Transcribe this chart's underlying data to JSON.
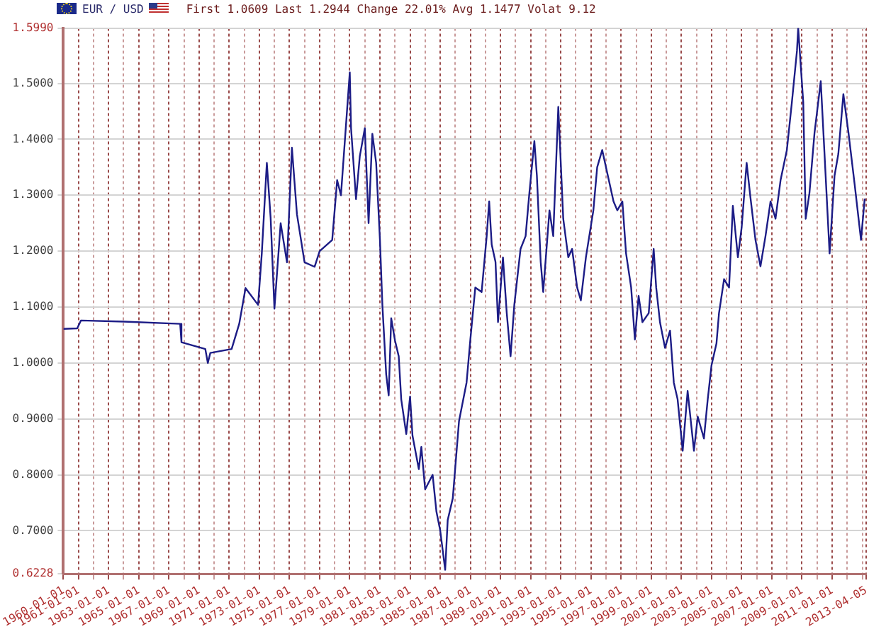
{
  "chart_data": {
    "type": "line",
    "title": "EUR / USD",
    "subtitle": "First 1.0609 Last 1.2944 Change 22.01% Avg 1.1477 Volat 9.12",
    "x": [
      "1960-01",
      "1960-12",
      "1961-03",
      "1964-01",
      "1967-10",
      "1967-11",
      "1969-06",
      "1969-08",
      "1969-10",
      "1971-03",
      "1971-09",
      "1972-02",
      "1972-12",
      "1973-03",
      "1973-07",
      "1973-10",
      "1974-01",
      "1974-06",
      "1974-11",
      "1975-03",
      "1975-07",
      "1976-01",
      "1976-09",
      "1977-01",
      "1977-11",
      "1978-03",
      "1978-06",
      "1979-01",
      "1979-02",
      "1979-06",
      "1979-09",
      "1980-01",
      "1980-04",
      "1980-07",
      "1980-10",
      "1981-01",
      "1981-03",
      "1981-06",
      "1981-08",
      "1981-10",
      "1982-01",
      "1982-04",
      "1982-06",
      "1982-10",
      "1983-01",
      "1983-03",
      "1983-08",
      "1983-10",
      "1984-01",
      "1984-07",
      "1984-10",
      "1985-01",
      "1985-05",
      "1985-07",
      "1985-11",
      "1986-04",
      "1986-10",
      "1987-01",
      "1987-05",
      "1987-10",
      "1988-02",
      "1988-04",
      "1988-06",
      "1988-09",
      "1988-11",
      "1989-03",
      "1989-06",
      "1989-09",
      "1989-12",
      "1990-05",
      "1990-09",
      "1990-12",
      "1991-04",
      "1991-06",
      "1991-09",
      "1991-11",
      "1992-04",
      "1992-07",
      "1992-11",
      "1993-03",
      "1993-07",
      "1993-10",
      "1994-02",
      "1994-05",
      "1994-09",
      "1995-03",
      "1995-06",
      "1995-10",
      "1996-01",
      "1996-07",
      "1996-10",
      "1997-02",
      "1997-05",
      "1997-09",
      "1997-12",
      "1998-03",
      "1998-06",
      "1998-11",
      "1999-03",
      "1999-05",
      "1999-08",
      "1999-12",
      "2000-04",
      "2000-07",
      "2000-10",
      "2001-02",
      "2001-06",
      "2001-11",
      "2002-02",
      "2002-07",
      "2002-10",
      "2003-01",
      "2003-05",
      "2003-07",
      "2003-11",
      "2004-03",
      "2004-06",
      "2004-10",
      "2005-01",
      "2005-05",
      "2005-08",
      "2005-12",
      "2006-04",
      "2006-08",
      "2006-12",
      "2007-04",
      "2007-08",
      "2008-01",
      "2008-05",
      "2008-09",
      "2008-10",
      "2009-02",
      "2009-04",
      "2009-07",
      "2009-11",
      "2010-04",
      "2010-07",
      "2010-11",
      "2011-03",
      "2011-06",
      "2011-10",
      "2012-02",
      "2012-07",
      "2012-12",
      "2013-03"
    ],
    "series": [
      {
        "color": "#1c1c86",
        "values": [
          1.061,
          1.062,
          1.076,
          1.074,
          1.07,
          1.037,
          1.025,
          1.0,
          1.018,
          1.025,
          1.07,
          1.134,
          1.104,
          1.196,
          1.358,
          1.26,
          1.097,
          1.25,
          1.18,
          1.385,
          1.266,
          1.18,
          1.172,
          1.2,
          1.22,
          1.327,
          1.3,
          1.52,
          1.42,
          1.293,
          1.37,
          1.42,
          1.25,
          1.41,
          1.358,
          1.22,
          1.104,
          0.98,
          0.942,
          1.08,
          1.04,
          1.012,
          0.935,
          0.873,
          0.94,
          0.87,
          0.81,
          0.85,
          0.774,
          0.8,
          0.734,
          0.7,
          0.63,
          0.719,
          0.758,
          0.896,
          0.965,
          1.042,
          1.135,
          1.127,
          1.227,
          1.289,
          1.212,
          1.181,
          1.073,
          1.189,
          1.089,
          1.012,
          1.104,
          1.204,
          1.227,
          1.304,
          1.397,
          1.335,
          1.181,
          1.127,
          1.273,
          1.227,
          1.458,
          1.258,
          1.189,
          1.204,
          1.135,
          1.112,
          1.189,
          1.273,
          1.35,
          1.381,
          1.35,
          1.289,
          1.273,
          1.289,
          1.196,
          1.135,
          1.042,
          1.12,
          1.073,
          1.089,
          1.204,
          1.135,
          1.073,
          1.027,
          1.058,
          0.965,
          0.935,
          0.843,
          0.95,
          0.843,
          0.904,
          0.865,
          0.935,
          0.996,
          1.035,
          1.089,
          1.15,
          1.135,
          1.281,
          1.189,
          1.243,
          1.358,
          1.296,
          1.22,
          1.173,
          1.227,
          1.289,
          1.258,
          1.327,
          1.381,
          1.466,
          1.558,
          1.599,
          1.466,
          1.258,
          1.304,
          1.412,
          1.504,
          1.374,
          1.196,
          1.335,
          1.374,
          1.481,
          1.412,
          1.319,
          1.22,
          1.294
        ]
      }
    ],
    "xlim": [
      "1960-01-01",
      "2013-04-05"
    ],
    "xticks": [
      {
        "value": "1960-01-01",
        "label": "1960-01-01"
      },
      {
        "value": "1961-01-01",
        "label": "1961-01-01"
      },
      {
        "value": "1962-01-01",
        "label": null
      },
      {
        "value": "1963-01-01",
        "label": "1963-01-01"
      },
      {
        "value": "1964-01-01",
        "label": null
      },
      {
        "value": "1965-01-01",
        "label": "1965-01-01"
      },
      {
        "value": "1966-01-01",
        "label": null
      },
      {
        "value": "1967-01-01",
        "label": "1967-01-01"
      },
      {
        "value": "1968-01-01",
        "label": null
      },
      {
        "value": "1969-01-01",
        "label": "1969-01-01"
      },
      {
        "value": "1970-01-01",
        "label": null
      },
      {
        "value": "1971-01-01",
        "label": "1971-01-01"
      },
      {
        "value": "1972-01-01",
        "label": null
      },
      {
        "value": "1973-01-01",
        "label": "1973-01-01"
      },
      {
        "value": "1974-01-01",
        "label": null
      },
      {
        "value": "1975-01-01",
        "label": "1975-01-01"
      },
      {
        "value": "1976-01-01",
        "label": null
      },
      {
        "value": "1977-01-01",
        "label": "1977-01-01"
      },
      {
        "value": "1978-01-01",
        "label": null
      },
      {
        "value": "1979-01-01",
        "label": "1979-01-01"
      },
      {
        "value": "1980-01-01",
        "label": null
      },
      {
        "value": "1981-01-01",
        "label": "1981-01-01"
      },
      {
        "value": "1982-01-01",
        "label": null
      },
      {
        "value": "1983-01-01",
        "label": "1983-01-01"
      },
      {
        "value": "1984-01-01",
        "label": null
      },
      {
        "value": "1985-01-01",
        "label": "1985-01-01"
      },
      {
        "value": "1986-01-01",
        "label": null
      },
      {
        "value": "1987-01-01",
        "label": "1987-01-01"
      },
      {
        "value": "1988-01-01",
        "label": null
      },
      {
        "value": "1989-01-01",
        "label": "1989-01-01"
      },
      {
        "value": "1990-01-01",
        "label": null
      },
      {
        "value": "1991-01-01",
        "label": "1991-01-01"
      },
      {
        "value": "1992-01-01",
        "label": null
      },
      {
        "value": "1993-01-01",
        "label": "1993-01-01"
      },
      {
        "value": "1994-01-01",
        "label": null
      },
      {
        "value": "1995-01-01",
        "label": "1995-01-01"
      },
      {
        "value": "1996-01-01",
        "label": null
      },
      {
        "value": "1997-01-01",
        "label": "1997-01-01"
      },
      {
        "value": "1998-01-01",
        "label": null
      },
      {
        "value": "1999-01-01",
        "label": "1999-01-01"
      },
      {
        "value": "2000-01-01",
        "label": null
      },
      {
        "value": "2001-01-01",
        "label": "2001-01-01"
      },
      {
        "value": "2002-01-01",
        "label": null
      },
      {
        "value": "2003-01-01",
        "label": "2003-01-01"
      },
      {
        "value": "2004-01-01",
        "label": null
      },
      {
        "value": "2005-01-01",
        "label": "2005-01-01"
      },
      {
        "value": "2006-01-01",
        "label": null
      },
      {
        "value": "2007-01-01",
        "label": "2007-01-01"
      },
      {
        "value": "2008-01-01",
        "label": null
      },
      {
        "value": "2009-01-01",
        "label": "2009-01-01"
      },
      {
        "value": "2010-01-01",
        "label": null
      },
      {
        "value": "2011-01-01",
        "label": "2011-01-01"
      },
      {
        "value": "2012-01-01",
        "label": null
      },
      {
        "value": "2013-01-01",
        "label": null
      },
      {
        "value": "2013-04-05",
        "label": "2013-04-05"
      }
    ],
    "ylim": [
      0.6228,
      1.599
    ],
    "yticks": [
      {
        "value": 0.6228,
        "label": "0.6228"
      },
      {
        "value": 0.7,
        "label": "0.7000"
      },
      {
        "value": 0.8,
        "label": "0.8000"
      },
      {
        "value": 0.9,
        "label": "0.9000"
      },
      {
        "value": 1.0,
        "label": "1.0000"
      },
      {
        "value": 1.1,
        "label": "1.1000"
      },
      {
        "value": 1.2,
        "label": "1.2000"
      },
      {
        "value": 1.3,
        "label": "1.3000"
      },
      {
        "value": 1.4,
        "label": "1.4000"
      },
      {
        "value": 1.5,
        "label": "1.5000"
      },
      {
        "value": 1.599,
        "label": "1.5990"
      }
    ],
    "grid": true,
    "legend": false,
    "marker": "none",
    "line_style": "solid"
  }
}
